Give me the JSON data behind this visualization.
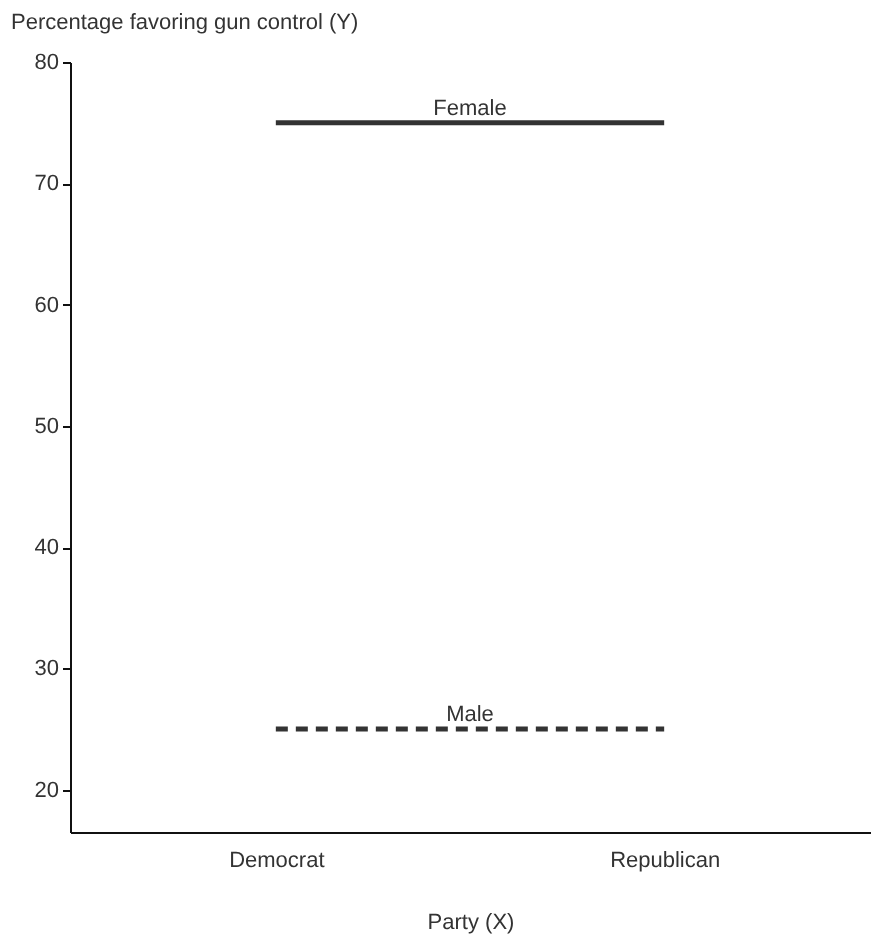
{
  "chart_data": {
    "type": "line",
    "ylabel": "Percentage favoring gun control (Y)",
    "xlabel": "Party (X)",
    "categories": [
      "Democrat",
      "Republican"
    ],
    "series": [
      {
        "name": "Female",
        "color": "#333333",
        "line_style": "solid",
        "values": [
          75,
          75
        ]
      },
      {
        "name": "Male",
        "color": "#333333",
        "line_style": "dashed",
        "values": [
          25,
          25
        ]
      }
    ],
    "ylim": [
      16.5,
      80
    ],
    "yticks": [
      20,
      30,
      40,
      50,
      60,
      70,
      80
    ],
    "grid": false,
    "marker": "none"
  }
}
